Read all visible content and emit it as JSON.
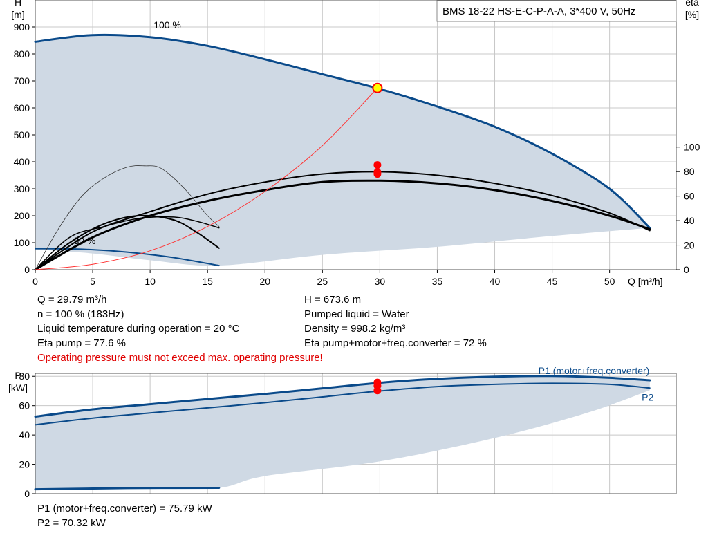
{
  "title": "BMS 18-22 HS-E-C-P-A-A, 3*400 V, 50Hz",
  "info_left": [
    "Q = 29.79 m³/h",
    "n = 100 % (183Hz)",
    "Liquid temperature during operation = 20 °C",
    "Eta pump = 77.6 %"
  ],
  "info_right": [
    "H = 673.6 m",
    "Pumped liquid = Water",
    "Density = 998.2 kg/m³",
    "Eta pump+motor+freq.converter = 72 %"
  ],
  "warning": "Operating pressure must not exceed max. operating pressure!",
  "power_info": [
    "P1 (motor+freq.converter) = 75.79 kW",
    "P2 = 70.32 kW"
  ],
  "colors": {
    "curve_blue": "#0a4a8a",
    "fill": "#cfd9e4",
    "grid": "#c8c8c8",
    "duty_point": "#ff0000",
    "duty_point_main": "#ffff00",
    "system_curve": "#ff3333"
  },
  "chart_data": [
    {
      "type": "line",
      "name": "head-efficiency",
      "x_label": "Q [m³/h]",
      "y_label": "H",
      "y_unit": "[m]",
      "y2_label": "eta",
      "y2_unit": "[%]",
      "xlim": [
        0,
        55.8
      ],
      "ylim": [
        0,
        1000
      ],
      "y2lim": [
        0,
        220
      ],
      "x_ticks": [
        0,
        5,
        10,
        15,
        20,
        25,
        30,
        35,
        40,
        45,
        50
      ],
      "y_ticks": [
        0,
        100,
        200,
        300,
        400,
        500,
        600,
        700,
        800,
        900
      ],
      "y2_ticks": [
        0,
        20,
        40,
        60,
        80,
        100
      ],
      "curve_labels": [
        {
          "text": "100 %",
          "x": 11.5,
          "y": 895
        },
        {
          "text": "30 %",
          "x": 4.3,
          "y": 95
        }
      ],
      "region": {
        "upper": [
          [
            0,
            845
          ],
          [
            5,
            870
          ],
          [
            10,
            862
          ],
          [
            15,
            830
          ],
          [
            20,
            780
          ],
          [
            25,
            725
          ],
          [
            30,
            670
          ],
          [
            35,
            605
          ],
          [
            40,
            530
          ],
          [
            45,
            430
          ],
          [
            50,
            300
          ],
          [
            53.5,
            155
          ]
        ],
        "lower": [
          [
            53.5,
            155
          ],
          [
            45,
            125
          ],
          [
            35,
            85
          ],
          [
            25,
            55
          ],
          [
            16,
            15
          ],
          [
            10,
            35
          ],
          [
            5,
            60
          ],
          [
            0,
            75
          ]
        ]
      },
      "series": [
        {
          "role": "head-100",
          "color": "#0a4a8a",
          "width": 3,
          "points": [
            [
              0,
              845
            ],
            [
              5,
              870
            ],
            [
              10,
              862
            ],
            [
              15,
              830
            ],
            [
              20,
              780
            ],
            [
              25,
              725
            ],
            [
              30,
              670
            ],
            [
              35,
              605
            ],
            [
              40,
              530
            ],
            [
              45,
              430
            ],
            [
              50,
              300
            ],
            [
              53.5,
              155
            ]
          ]
        },
        {
          "role": "head-30",
          "color": "#0a4a8a",
          "width": 2,
          "points": [
            [
              0,
              78
            ],
            [
              4,
              76
            ],
            [
              8,
              65
            ],
            [
              12,
              45
            ],
            [
              16,
              15
            ]
          ]
        },
        {
          "role": "eta-pump-100",
          "color": "#000000",
          "width": 3,
          "points": [
            [
              0,
              0
            ],
            [
              5,
              120
            ],
            [
              10,
              200
            ],
            [
              15,
              255
            ],
            [
              20,
              295
            ],
            [
              25,
              325
            ],
            [
              30,
              330
            ],
            [
              35,
              320
            ],
            [
              40,
              295
            ],
            [
              45,
              255
            ],
            [
              50,
              200
            ],
            [
              53.5,
              150
            ]
          ]
        },
        {
          "role": "eta-total-100",
          "color": "#000000",
          "width": 2,
          "points": [
            [
              0,
              0
            ],
            [
              5,
              140
            ],
            [
              10,
              215
            ],
            [
              15,
              280
            ],
            [
              20,
              325
            ],
            [
              25,
              355
            ],
            [
              30,
              363
            ],
            [
              35,
              350
            ],
            [
              40,
              320
            ],
            [
              45,
              275
            ],
            [
              50,
              210
            ],
            [
              53.5,
              145
            ]
          ]
        },
        {
          "role": "eta-pump-30",
          "color": "#000000",
          "width": 2,
          "points": [
            [
              0,
              0
            ],
            [
              3,
              100
            ],
            [
              6,
              170
            ],
            [
              9,
              200
            ],
            [
              12,
              185
            ],
            [
              14,
              140
            ],
            [
              16,
              80
            ]
          ]
        },
        {
          "role": "eta-low-30",
          "color": "#000000",
          "width": 1.5,
          "points": [
            [
              0,
              0
            ],
            [
              3,
              120
            ],
            [
              6,
              160
            ],
            [
              9,
              190
            ],
            [
              12,
              195
            ],
            [
              14,
              180
            ],
            [
              16,
              155
            ]
          ]
        },
        {
          "role": "head-30-thin",
          "color": "#333333",
          "width": 0.8,
          "points": [
            [
              0,
              0
            ],
            [
              2,
              150
            ],
            [
              4,
              270
            ],
            [
              6,
              340
            ],
            [
              8,
              380
            ],
            [
              9.5,
              385
            ],
            [
              11,
              375
            ],
            [
              13,
              300
            ],
            [
              15,
              200
            ],
            [
              16,
              160
            ]
          ]
        },
        {
          "role": "system-curve",
          "color": "#ff3333",
          "width": 1,
          "points": [
            [
              0,
              0
            ],
            [
              5,
              20
            ],
            [
              10,
              70
            ],
            [
              15,
              160
            ],
            [
              20,
              290
            ],
            [
              25,
              460
            ],
            [
              29.79,
              673.6
            ]
          ]
        }
      ],
      "duty_points": [
        {
          "x": 29.79,
          "y": 673.6,
          "main": true
        },
        {
          "x": 29.79,
          "y": 388
        },
        {
          "x": 29.79,
          "y": 362
        },
        {
          "x": 29.79,
          "y": 355
        }
      ]
    },
    {
      "type": "line",
      "name": "power",
      "y_label": "P",
      "y_unit": "[kW]",
      "xlim": [
        0,
        55.8
      ],
      "ylim": [
        0,
        82
      ],
      "y_ticks": [
        0,
        20,
        40,
        60,
        80
      ],
      "series_labels": [
        {
          "text": "P1 (motor+freq.converter)",
          "x": 43.8,
          "y": 81.5
        },
        {
          "text": "P2",
          "x": 52.8,
          "y": 63.5
        }
      ],
      "region": {
        "upper": [
          [
            0,
            52.5
          ],
          [
            5,
            57.5
          ],
          [
            10,
            61
          ],
          [
            15,
            64.5
          ],
          [
            20,
            68
          ],
          [
            25,
            71.8
          ],
          [
            30,
            75.6
          ],
          [
            35,
            78.3
          ],
          [
            40,
            79.8
          ],
          [
            45,
            80.2
          ],
          [
            50,
            79
          ],
          [
            53.5,
            77.3
          ]
        ],
        "lower": [
          [
            53.5,
            70.5
          ],
          [
            48,
            55
          ],
          [
            40,
            38
          ],
          [
            30,
            22
          ],
          [
            20,
            12
          ],
          [
            16,
            4
          ],
          [
            10,
            3.8
          ],
          [
            5,
            3.3
          ],
          [
            0,
            3
          ]
        ]
      },
      "series": [
        {
          "name": "P1 (motor+freq.converter)",
          "color": "#0a4a8a",
          "width": 3,
          "points": [
            [
              0,
              52.5
            ],
            [
              5,
              57.5
            ],
            [
              10,
              61
            ],
            [
              15,
              64.5
            ],
            [
              20,
              68
            ],
            [
              25,
              71.8
            ],
            [
              30,
              75.6
            ],
            [
              35,
              78.3
            ],
            [
              40,
              79.8
            ],
            [
              45,
              80.2
            ],
            [
              50,
              79
            ],
            [
              53.5,
              77.3
            ]
          ]
        },
        {
          "name": "P2",
          "color": "#0a4a8a",
          "width": 2,
          "points": [
            [
              0,
              47
            ],
            [
              5,
              51.5
            ],
            [
              10,
              55
            ],
            [
              15,
              58.5
            ],
            [
              20,
              62
            ],
            [
              25,
              66
            ],
            [
              30,
              70
            ],
            [
              35,
              73
            ],
            [
              40,
              74.5
            ],
            [
              45,
              75.2
            ],
            [
              50,
              74.5
            ],
            [
              53.5,
              72
            ]
          ]
        },
        {
          "role": "P1-30",
          "color": "#0a4a8a",
          "width": 3,
          "points": [
            [
              0,
              3
            ],
            [
              8,
              3.8
            ],
            [
              16,
              4
            ]
          ]
        }
      ],
      "duty_points": [
        {
          "x": 29.79,
          "y": 75.79
        },
        {
          "x": 29.79,
          "y": 73.5
        },
        {
          "x": 29.79,
          "y": 70.32
        }
      ]
    }
  ]
}
